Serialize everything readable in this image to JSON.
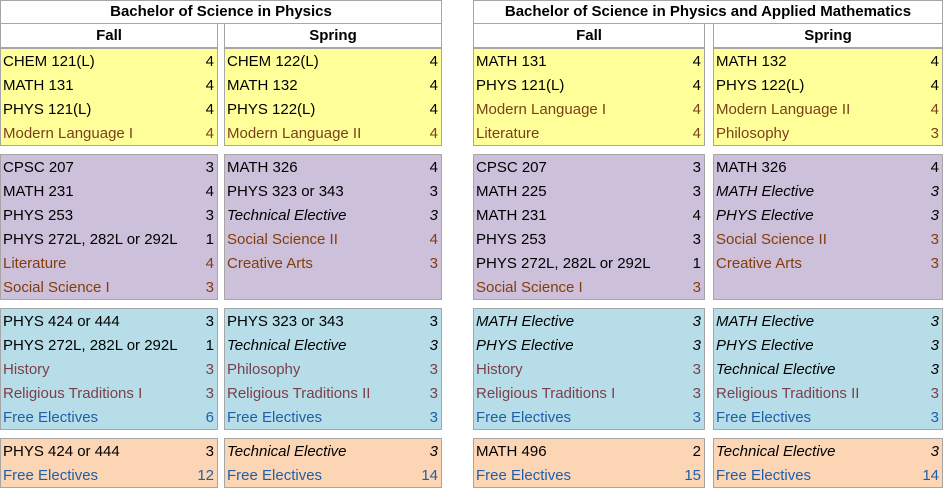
{
  "programs": [
    {
      "title": "Bachelor of Science in Physics",
      "fall_label": "Fall",
      "spring_label": "Spring",
      "fall": [
        [
          [
            "CHEM 121(L)",
            "4",
            "c-black",
            ""
          ],
          [
            "MATH 131",
            "4",
            "c-black",
            ""
          ],
          [
            "PHYS 121(L)",
            "4",
            "c-black",
            ""
          ],
          [
            "Modern Language I",
            "4",
            "c-brown",
            ""
          ]
        ],
        [
          [
            "CPSC 207",
            "3",
            "c-black",
            ""
          ],
          [
            "MATH 231",
            "4",
            "c-black",
            ""
          ],
          [
            "PHYS 253",
            "3",
            "c-black",
            ""
          ],
          [
            "PHYS 272L, 282L or 292L",
            "1",
            "c-black",
            ""
          ],
          [
            "Literature",
            "4",
            "c-maroon",
            ""
          ],
          [
            "Social Science I",
            "3",
            "c-maroon",
            ""
          ]
        ],
        [
          [
            "PHYS 424 or 444",
            "3",
            "c-black",
            ""
          ],
          [
            "PHYS 272L, 282L or 292L",
            "1",
            "c-black",
            ""
          ],
          [
            "History",
            "3",
            "c-pink",
            ""
          ],
          [
            "Religious Traditions I",
            "3",
            "c-pink",
            ""
          ],
          [
            "Free Electives",
            "6",
            "c-link",
            ""
          ]
        ],
        [
          [
            "PHYS 424 or 444",
            "3",
            "c-black",
            ""
          ],
          [
            "Free Electives",
            "12",
            "c-link",
            ""
          ]
        ]
      ],
      "spring": [
        [
          [
            "CHEM 122(L)",
            "4",
            "c-black",
            ""
          ],
          [
            "MATH 132",
            "4",
            "c-black",
            ""
          ],
          [
            "PHYS 122(L)",
            "4",
            "c-black",
            ""
          ],
          [
            "Modern Language II",
            "4",
            "c-brown",
            ""
          ]
        ],
        [
          [
            "MATH 326",
            "4",
            "c-black",
            ""
          ],
          [
            "PHYS 323 or 343",
            "3",
            "c-black",
            ""
          ],
          [
            "Technical Elective",
            "3",
            "c-black",
            "it"
          ],
          [
            "Social Science II",
            "4",
            "c-maroon",
            ""
          ],
          [
            "Creative Arts",
            "3",
            "c-maroon",
            ""
          ],
          [
            "",
            "",
            "c-black",
            ""
          ]
        ],
        [
          [
            "PHYS 323 or 343",
            "3",
            "c-black",
            ""
          ],
          [
            "Technical Elective",
            "3",
            "c-black",
            "it"
          ],
          [
            "Philosophy",
            "3",
            "c-pink",
            ""
          ],
          [
            "Religious Traditions II",
            "3",
            "c-pink",
            ""
          ],
          [
            "Free Electives",
            "3",
            "c-link",
            ""
          ]
        ],
        [
          [
            "Technical Elective",
            "3",
            "c-black",
            "it"
          ],
          [
            "Free Electives",
            "14",
            "c-link",
            ""
          ]
        ]
      ]
    },
    {
      "title": "Bachelor of Science in Physics and Applied Mathematics",
      "fall_label": "Fall",
      "spring_label": "Spring",
      "fall": [
        [
          [
            "MATH 131",
            "4",
            "c-black",
            ""
          ],
          [
            "PHYS 121(L)",
            "4",
            "c-black",
            ""
          ],
          [
            "Modern Language I",
            "4",
            "c-brown",
            ""
          ],
          [
            "Literature",
            "4",
            "c-brown",
            ""
          ]
        ],
        [
          [
            "CPSC 207",
            "3",
            "c-black",
            ""
          ],
          [
            "MATH 225",
            "3",
            "c-black",
            ""
          ],
          [
            "MATH 231",
            "4",
            "c-black",
            ""
          ],
          [
            "PHYS 253",
            "3",
            "c-black",
            ""
          ],
          [
            "PHYS 272L, 282L or 292L",
            "1",
            "c-black",
            ""
          ],
          [
            "Social Science I",
            "3",
            "c-maroon",
            ""
          ]
        ],
        [
          [
            "MATH Elective",
            "3",
            "c-black",
            "it"
          ],
          [
            "PHYS Elective",
            "3",
            "c-black",
            "it"
          ],
          [
            "History",
            "3",
            "c-pink",
            ""
          ],
          [
            "Religious Traditions I",
            "3",
            "c-pink",
            ""
          ],
          [
            "Free Electives",
            "3",
            "c-link",
            ""
          ]
        ],
        [
          [
            "MATH 496",
            "2",
            "c-black",
            ""
          ],
          [
            "Free Electives",
            "15",
            "c-link",
            ""
          ]
        ]
      ],
      "spring": [
        [
          [
            "MATH 132",
            "4",
            "c-black",
            ""
          ],
          [
            "PHYS 122(L)",
            "4",
            "c-black",
            ""
          ],
          [
            "Modern Language II",
            "4",
            "c-brown",
            ""
          ],
          [
            "Philosophy",
            "3",
            "c-brown",
            ""
          ]
        ],
        [
          [
            "MATH 326",
            "4",
            "c-black",
            ""
          ],
          [
            "MATH Elective",
            "3",
            "c-black",
            "it"
          ],
          [
            "PHYS Elective",
            "3",
            "c-black",
            "it"
          ],
          [
            "Social Science II",
            "3",
            "c-maroon",
            ""
          ],
          [
            "Creative Arts",
            "3",
            "c-maroon",
            ""
          ],
          [
            "",
            "",
            "c-black",
            ""
          ]
        ],
        [
          [
            "MATH Elective",
            "3",
            "c-black",
            "it"
          ],
          [
            "PHYS Elective",
            "3",
            "c-black",
            "it"
          ],
          [
            "Technical Elective",
            "3",
            "c-black",
            "it"
          ],
          [
            "Religious Traditions II",
            "3",
            "c-pink",
            ""
          ],
          [
            "Free Electives",
            "3",
            "c-link",
            ""
          ]
        ],
        [
          [
            "Technical Elective",
            "3",
            "c-black",
            "it"
          ],
          [
            "Free Electives",
            "14",
            "c-link",
            ""
          ]
        ]
      ]
    }
  ],
  "block_colors": [
    "#ffff99",
    "#ccc0da",
    "#b7dee8",
    "#fcd5b4"
  ]
}
